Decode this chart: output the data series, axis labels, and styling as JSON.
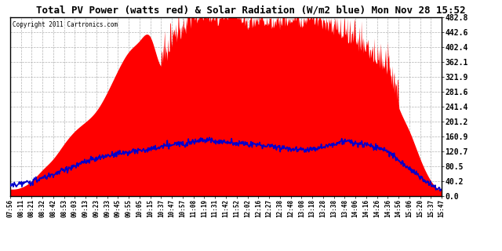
{
  "title": "Total PV Power (watts red) & Solar Radiation (W/m2 blue) Mon Nov 28 15:52",
  "copyright": "Copyright 2011 Cartronics.com",
  "ymax": 482.8,
  "ymin": 0.0,
  "yticks": [
    0.0,
    40.2,
    80.5,
    120.7,
    160.9,
    201.2,
    241.4,
    281.6,
    321.9,
    362.1,
    402.4,
    442.6,
    482.8
  ],
  "bg_color": "#FFFFFF",
  "fill_color": "#FF0000",
  "line_color": "#0000CC",
  "outer_bg": "#FFFFFF",
  "xtick_labels": [
    "07:56",
    "08:11",
    "08:21",
    "08:32",
    "08:42",
    "08:53",
    "09:03",
    "09:13",
    "09:23",
    "09:33",
    "09:45",
    "09:55",
    "10:05",
    "10:15",
    "10:37",
    "10:47",
    "10:57",
    "11:08",
    "11:19",
    "11:31",
    "11:42",
    "11:52",
    "12:02",
    "12:16",
    "12:27",
    "12:38",
    "12:48",
    "13:08",
    "13:18",
    "13:28",
    "13:38",
    "13:48",
    "14:06",
    "14:16",
    "14:26",
    "14:36",
    "14:56",
    "15:06",
    "15:20",
    "15:37",
    "15:47"
  ],
  "pv_power": [
    18,
    22,
    40,
    70,
    100,
    140,
    175,
    200,
    230,
    280,
    340,
    390,
    420,
    430,
    350,
    390,
    430,
    460,
    470,
    460,
    470,
    475,
    450,
    460,
    455,
    450,
    460,
    455,
    450,
    445,
    435,
    420,
    395,
    375,
    350,
    320,
    240,
    175,
    100,
    40,
    15
  ],
  "solar_rad_scaled": [
    28,
    32,
    38,
    48,
    58,
    70,
    80,
    92,
    100,
    108,
    115,
    118,
    122,
    126,
    132,
    138,
    142,
    148,
    152,
    148,
    145,
    143,
    140,
    138,
    135,
    132,
    128,
    125,
    128,
    132,
    140,
    148,
    142,
    138,
    130,
    120,
    95,
    75,
    50,
    30,
    15
  ]
}
